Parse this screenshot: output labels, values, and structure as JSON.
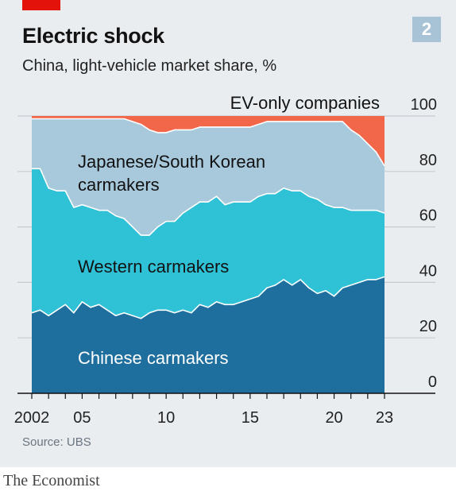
{
  "header": {
    "title": "Electric shock",
    "subtitle": "China, light-vehicle market share, %",
    "chart_number": "2"
  },
  "source": "Source: UBS",
  "footer": "The Economist",
  "colors": {
    "chinese": "#1f6f9e",
    "western": "#2fc1d6",
    "japanese_korean": "#a7c9db",
    "ev_only": "#f2674a",
    "panel": "#e9edf0",
    "accent_red": "#e3120b"
  },
  "chart_data": {
    "type": "area",
    "stacked": true,
    "title": "Electric shock",
    "subtitle": "China, light-vehicle market share, %",
    "x_tick_labels": [
      "2002",
      "05",
      "10",
      "15",
      "20",
      "23"
    ],
    "x_tick_values": [
      2002,
      2005,
      2010,
      2015,
      2020,
      2023
    ],
    "xlim": [
      2002,
      2023
    ],
    "ylim": [
      0,
      100
    ],
    "y_ticks": [
      "0",
      "20",
      "40",
      "60",
      "80",
      "100"
    ],
    "y_tick_values": [
      0,
      20,
      40,
      60,
      80,
      100
    ],
    "y_axis_position": "right",
    "grid": true,
    "x": [
      2002,
      2002.5,
      2003,
      2003.5,
      2004,
      2004.5,
      2005,
      2005.5,
      2006,
      2006.5,
      2007,
      2007.5,
      2008,
      2008.5,
      2009,
      2009.5,
      2010,
      2010.5,
      2011,
      2011.5,
      2012,
      2012.5,
      2013,
      2013.5,
      2014,
      2014.5,
      2015,
      2015.5,
      2016,
      2016.5,
      2017,
      2017.5,
      2018,
      2018.5,
      2019,
      2019.5,
      2020,
      2020.5,
      2021,
      2021.5,
      2022,
      2022.5,
      2023
    ],
    "series": [
      {
        "name": "Chinese carmakers",
        "values": [
          29,
          30,
          28,
          30,
          32,
          29,
          33,
          31,
          32,
          30,
          28,
          29,
          28,
          27,
          29,
          30,
          30,
          29,
          30,
          29,
          32,
          31,
          33,
          32,
          32,
          33,
          34,
          35,
          38,
          39,
          41,
          39,
          41,
          38,
          36,
          37,
          35,
          38,
          39,
          40,
          41,
          41,
          42
        ]
      },
      {
        "name": "Western carmakers",
        "values": [
          52,
          51,
          46,
          43,
          41,
          38,
          35,
          36,
          34,
          36,
          36,
          34,
          32,
          30,
          28,
          30,
          32,
          33,
          35,
          38,
          37,
          38,
          38,
          36,
          37,
          36,
          35,
          36,
          34,
          33,
          33,
          34,
          32,
          33,
          34,
          31,
          32,
          29,
          27,
          26,
          25,
          25,
          23
        ]
      },
      {
        "name": "Japanese/South Korean carmakers",
        "values": [
          18,
          18,
          25,
          26,
          26,
          32,
          31,
          32,
          33,
          33,
          35,
          36,
          38,
          40,
          38,
          34,
          32,
          33,
          30,
          28,
          27,
          27,
          25,
          28,
          27,
          27,
          27,
          26,
          26,
          26,
          24,
          25,
          25,
          27,
          28,
          30,
          31,
          31,
          29,
          27,
          24,
          21,
          17
        ]
      },
      {
        "name": "EV-only companies",
        "values": [
          1,
          1,
          1,
          1,
          1,
          1,
          1,
          1,
          1,
          1,
          1,
          1,
          2,
          3,
          5,
          6,
          6,
          5,
          5,
          5,
          4,
          4,
          4,
          4,
          4,
          4,
          4,
          3,
          2,
          2,
          2,
          2,
          2,
          2,
          2,
          2,
          2,
          2,
          5,
          7,
          10,
          13,
          18
        ]
      }
    ]
  }
}
